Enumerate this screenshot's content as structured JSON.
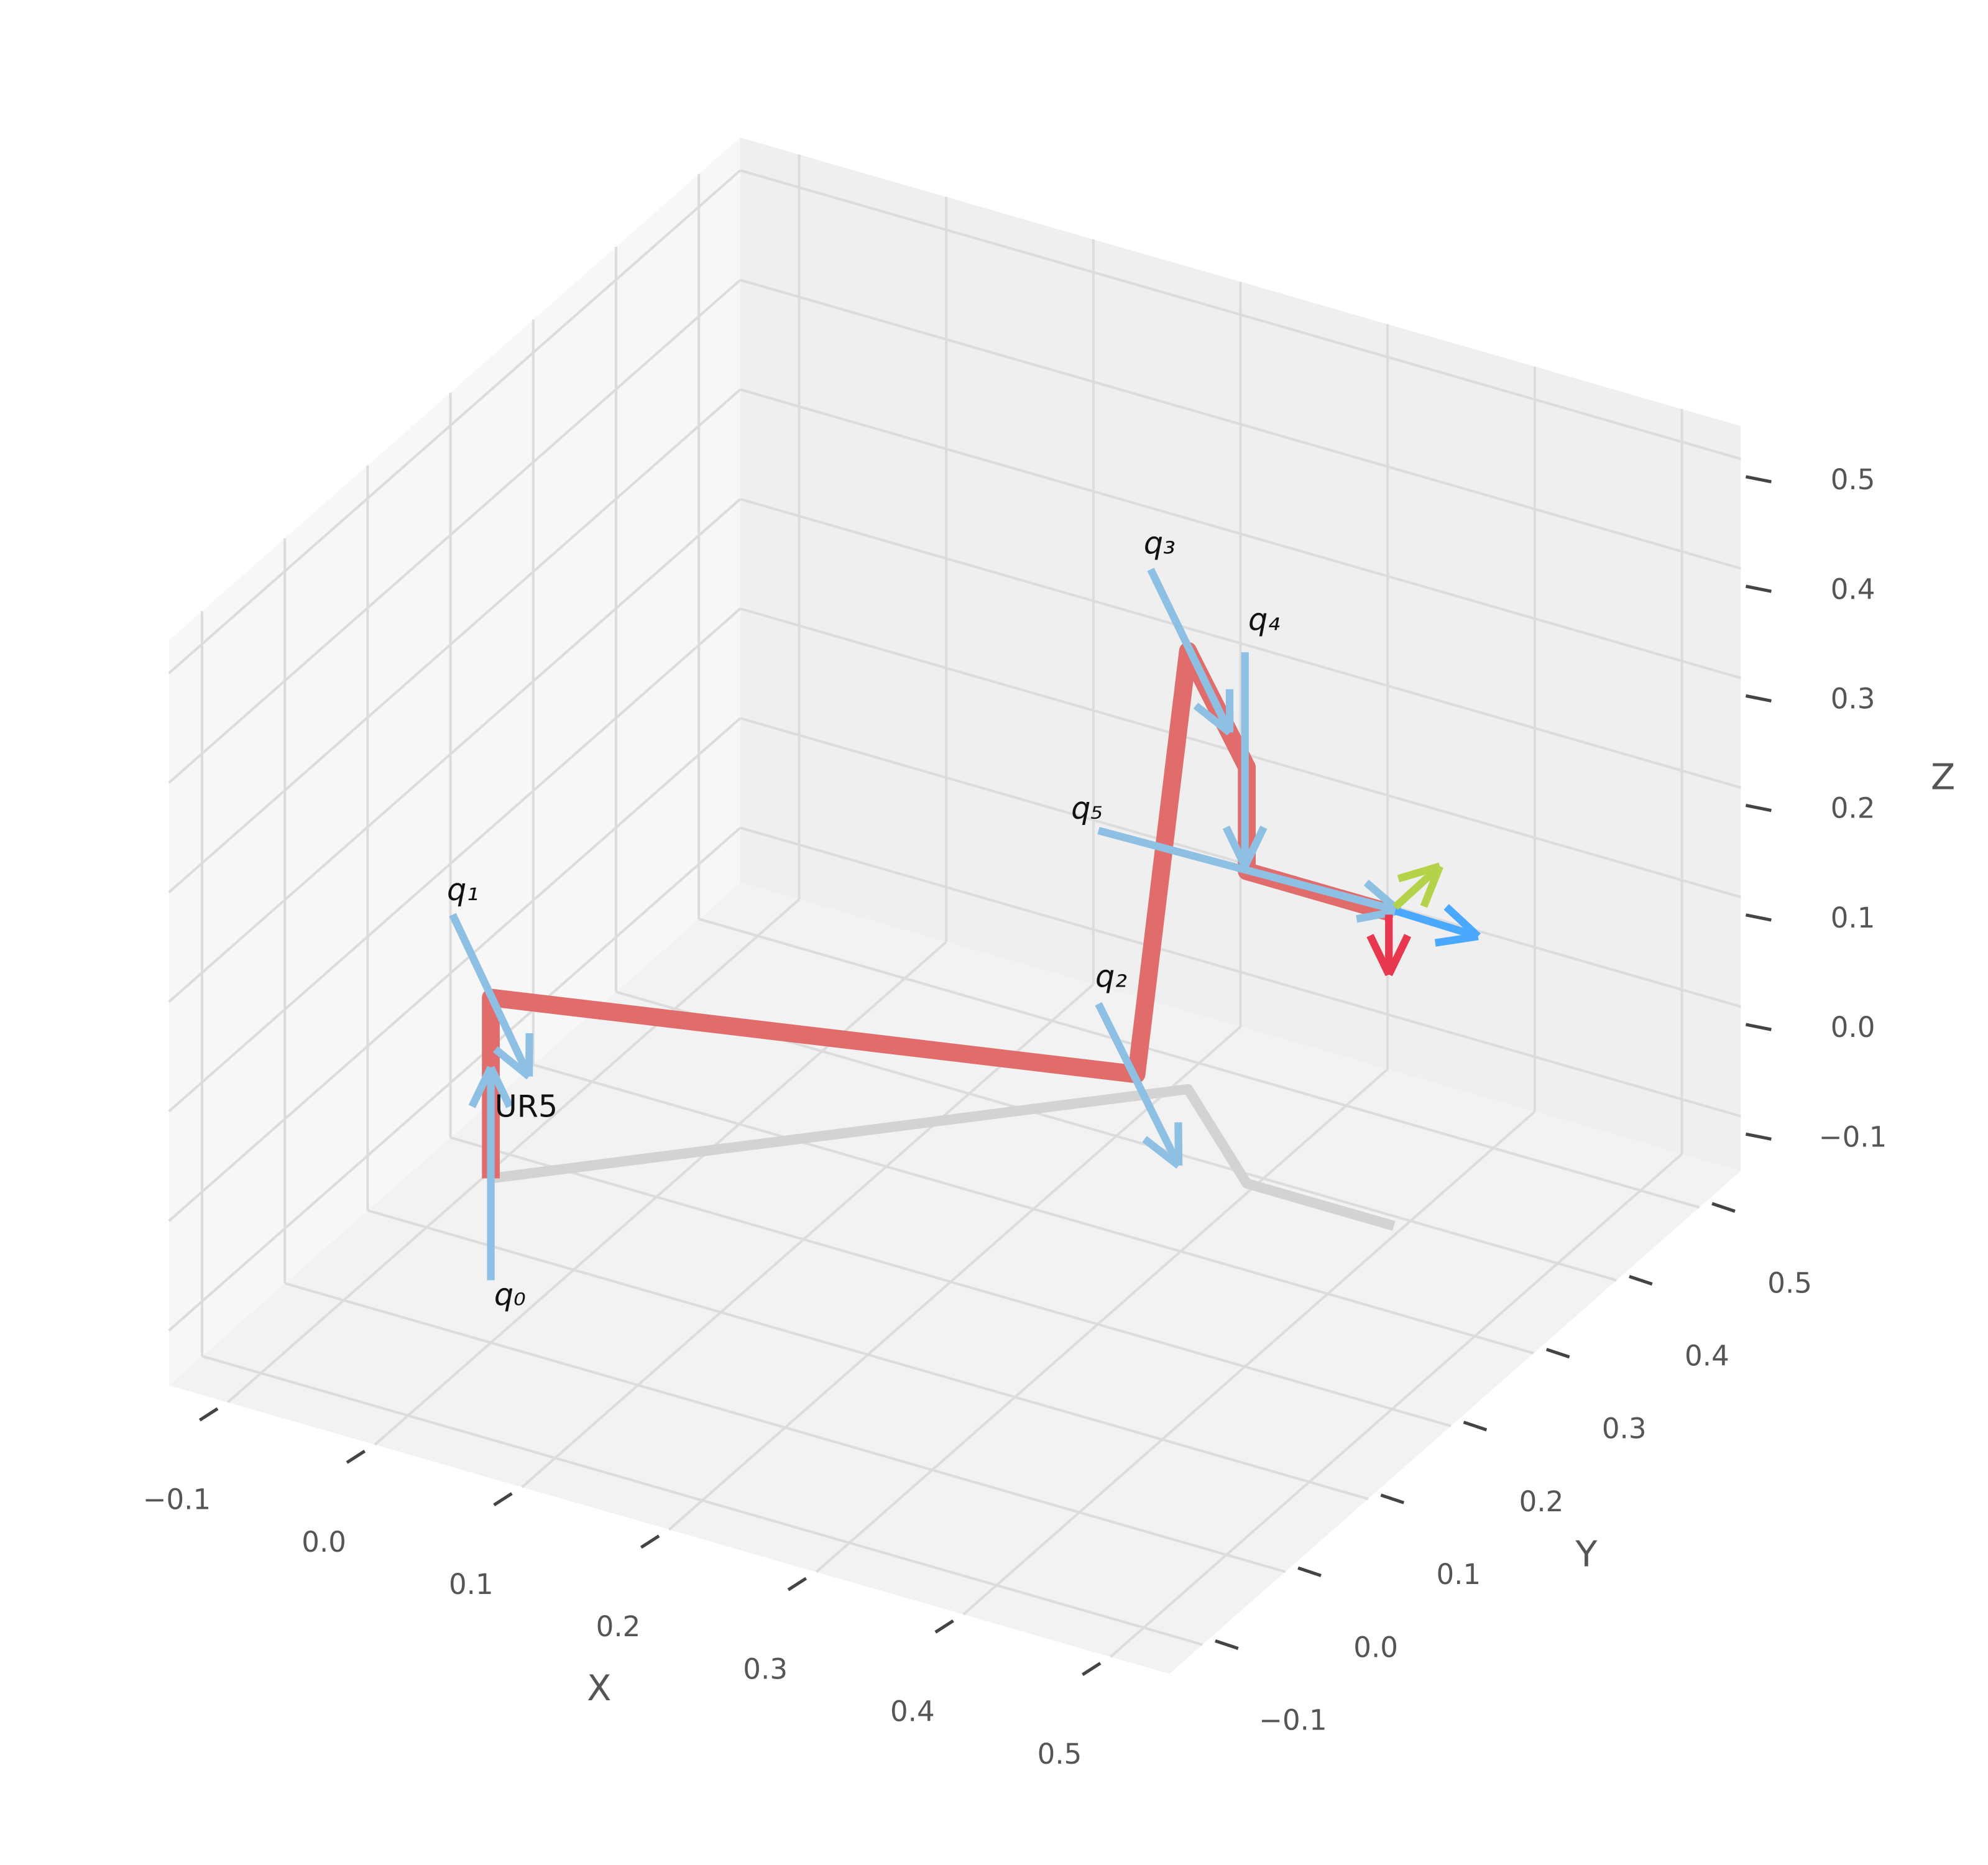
{
  "chart_data": {
    "type": "line3d",
    "xlabel": "X",
    "ylabel": "Y",
    "zlabel": "Z",
    "xlim": [
      -0.14,
      0.54
    ],
    "ylim": [
      -0.14,
      0.55
    ],
    "zlim": [
      -0.15,
      0.53
    ],
    "xticks": [
      {
        "value": -0.1,
        "label": "−0.1"
      },
      {
        "value": 0,
        "label": "0.0"
      },
      0.1,
      0.2,
      0.3,
      0.4,
      0.5
    ],
    "yticks": [
      {
        "value": -0.1,
        "label": "−0.1"
      },
      {
        "value": 0,
        "label": "0.0"
      },
      0.1,
      0.2,
      0.3,
      0.4,
      0.5
    ],
    "zticks": [
      {
        "value": -0.1,
        "label": "−0.1"
      },
      {
        "value": 0,
        "label": "0.0"
      },
      0.1,
      0.2,
      0.3,
      0.4,
      0.5
    ],
    "grid": true,
    "series": [
      {
        "name": "UR5",
        "color": "#e06c6c",
        "x": [
          0,
          0,
          0.27,
          0.305,
          0.39,
          0.39,
          0.49
        ],
        "y": [
          0,
          0,
          0.3,
          0.3,
          0.22,
          0.22,
          0.22
        ],
        "z": [
          0,
          0.165,
          0,
          0.4,
          0.38,
          0.285,
          0.285
        ]
      },
      {
        "color": "#d3d3d3",
        "x": [
          0,
          0.305,
          0.39,
          0.49
        ],
        "y": [
          0,
          0.3,
          0.22,
          0.22
        ],
        "z": [
          0,
          0,
          0,
          0
        ]
      }
    ],
    "joint_labels": [
      "q₀",
      "q₁",
      "q₂",
      "q₃",
      "q₄",
      "q₅"
    ]
  }
}
